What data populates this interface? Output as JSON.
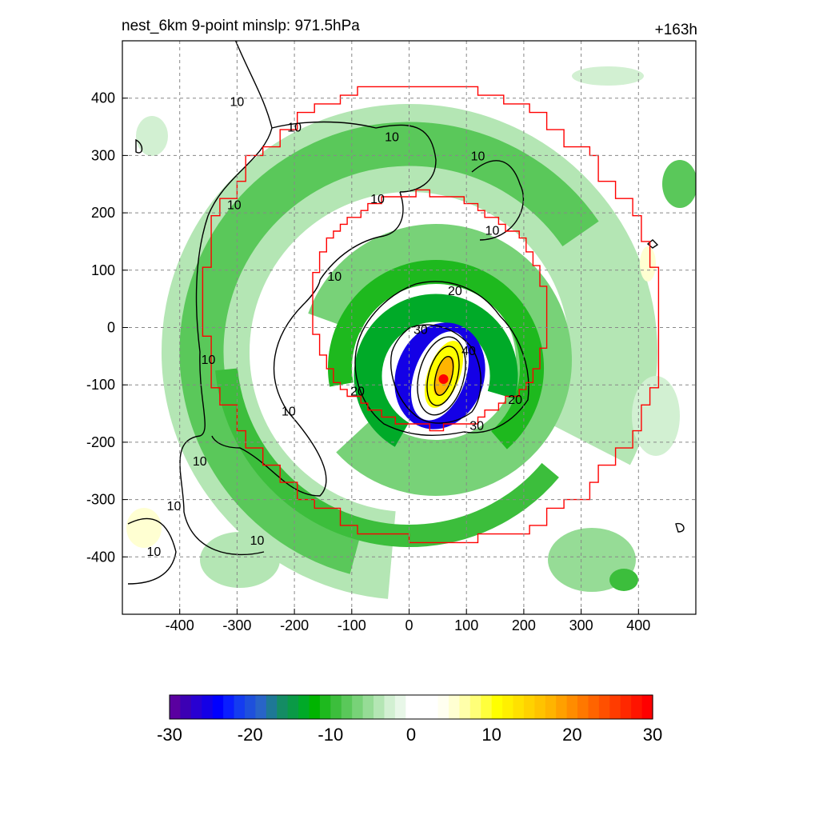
{
  "chart_data": {
    "type": "heatmap",
    "title": "nest_6km  9-point minslp: 971.5hPa",
    "time_label": "+163h",
    "xlabel": "",
    "ylabel": "",
    "xlim": [
      -500,
      500
    ],
    "ylim": [
      -500,
      500
    ],
    "x_ticks": [
      "-400",
      "-300",
      "-200",
      "-100",
      "0",
      "100",
      "200",
      "300",
      "400"
    ],
    "y_ticks": [
      "400",
      "300",
      "200",
      "100",
      "0",
      "-100",
      "-200",
      "-300",
      "-400"
    ],
    "grid": true,
    "colorbar": {
      "min": -30,
      "max": 30,
      "ticks": [
        "-30",
        "-20",
        "-10",
        "0",
        "10",
        "20",
        "30"
      ],
      "colors": [
        "#5a00a0",
        "#3c00b4",
        "#2800d2",
        "#1400e6",
        "#0000ff",
        "#0a1eff",
        "#143cf0",
        "#1e50dc",
        "#2864c8",
        "#1e7896",
        "#148c64",
        "#0a9a46",
        "#00aa28",
        "#00b400",
        "#1eb91e",
        "#3cbe3c",
        "#5ac85a",
        "#78d278",
        "#96dc96",
        "#b4e6b4",
        "#d2f0d2",
        "#e8f7e8",
        "#ffffff",
        "#ffffff",
        "#ffffff",
        "#fffff0",
        "#ffffd2",
        "#ffffaa",
        "#ffff78",
        "#ffff3c",
        "#ffff00",
        "#fff000",
        "#ffe100",
        "#ffd200",
        "#ffc300",
        "#ffb400",
        "#ffa000",
        "#ff8c00",
        "#ff7800",
        "#ff6400",
        "#ff5000",
        "#ff3c00",
        "#ff2800",
        "#ff1400",
        "#ff0000"
      ]
    },
    "contour_labels": [
      {
        "text": "10",
        "x": -300,
        "y": 395
      },
      {
        "text": "10",
        "x": -200,
        "y": 350
      },
      {
        "text": "10",
        "x": -30,
        "y": 333
      },
      {
        "text": "10",
        "x": 120,
        "y": 300
      },
      {
        "text": "10",
        "x": -55,
        "y": 225
      },
      {
        "text": "10",
        "x": -305,
        "y": 215
      },
      {
        "text": "10",
        "x": 145,
        "y": 170
      },
      {
        "text": "10",
        "x": -130,
        "y": 90
      },
      {
        "text": "10",
        "x": -350,
        "y": -55
      },
      {
        "text": "10",
        "x": -210,
        "y": -145
      },
      {
        "text": "10",
        "x": -365,
        "y": -232
      },
      {
        "text": "10",
        "x": -410,
        "y": -310
      },
      {
        "text": "10",
        "x": -265,
        "y": -370
      },
      {
        "text": "10",
        "x": -445,
        "y": -390
      },
      {
        "text": "20",
        "x": 80,
        "y": 65
      },
      {
        "text": "20",
        "x": -90,
        "y": -110
      },
      {
        "text": "20",
        "x": 185,
        "y": -125
      },
      {
        "text": "30",
        "x": 20,
        "y": -3
      },
      {
        "text": "30",
        "x": 118,
        "y": -170
      },
      {
        "text": "40",
        "x": 104,
        "y": -40
      }
    ],
    "center_marker": {
      "x": 60,
      "y": -90
    }
  }
}
